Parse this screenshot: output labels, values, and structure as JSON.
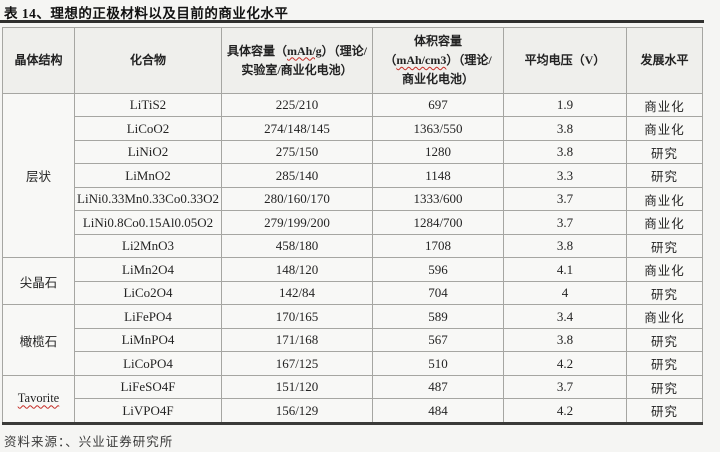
{
  "title": "表 14、理想的正极材料以及目前的商业化水平",
  "footer": "资料来源：、兴业证券研究所",
  "spellcheck_terms": [
    "mAh/cm3",
    "mAh/g",
    "Tavorite"
  ],
  "colors": {
    "page_bg": "#f5f5f3",
    "header_bg": "#efefec",
    "row_bg": "#f8f8f6",
    "border": "#a6a6a2",
    "title_rule": "#30302e",
    "spellcheck_red": "#c42b24"
  },
  "table": {
    "headers": [
      {
        "id": "structure",
        "lines": [
          "晶体结构"
        ]
      },
      {
        "id": "compound",
        "lines": [
          "化合物"
        ]
      },
      {
        "id": "specific_capacity",
        "lines": [
          "具体容量（mAh/g）（理论/",
          "实验室/商业化电池）"
        ]
      },
      {
        "id": "volumetric_capacity",
        "lines": [
          "体积容量",
          "（mAh/cm3）（理论/",
          "商业化电池）"
        ]
      },
      {
        "id": "avg_voltage",
        "lines": [
          "平均电压（V）"
        ]
      },
      {
        "id": "development",
        "lines": [
          "发展水平"
        ]
      }
    ],
    "groups": [
      {
        "structure": "层状",
        "rows": [
          {
            "compound": "LiTiS2",
            "specific_capacity": "225/210",
            "volumetric_capacity": "697",
            "avg_voltage": "1.9",
            "development": "商业化"
          },
          {
            "compound": "LiCoO2",
            "specific_capacity": "274/148/145",
            "volumetric_capacity": "1363/550",
            "avg_voltage": "3.8",
            "development": "商业化"
          },
          {
            "compound": "LiNiO2",
            "specific_capacity": "275/150",
            "volumetric_capacity": "1280",
            "avg_voltage": "3.8",
            "development": "研究"
          },
          {
            "compound": "LiMnO2",
            "specific_capacity": "285/140",
            "volumetric_capacity": "1148",
            "avg_voltage": "3.3",
            "development": "研究"
          },
          {
            "compound": "LiNi0.33Mn0.33Co0.33O2",
            "specific_capacity": "280/160/170",
            "volumetric_capacity": "1333/600",
            "avg_voltage": "3.7",
            "development": "商业化"
          },
          {
            "compound": "LiNi0.8Co0.15Al0.05O2",
            "specific_capacity": "279/199/200",
            "volumetric_capacity": "1284/700",
            "avg_voltage": "3.7",
            "development": "商业化"
          },
          {
            "compound": "Li2MnO3",
            "specific_capacity": "458/180",
            "volumetric_capacity": "1708",
            "avg_voltage": "3.8",
            "development": "研究"
          }
        ]
      },
      {
        "structure": "尖晶石",
        "rows": [
          {
            "compound": "LiMn2O4",
            "specific_capacity": "148/120",
            "volumetric_capacity": "596",
            "avg_voltage": "4.1",
            "development": "商业化"
          },
          {
            "compound": "LiCo2O4",
            "specific_capacity": "142/84",
            "volumetric_capacity": "704",
            "avg_voltage": "4",
            "development": "研究"
          }
        ]
      },
      {
        "structure": "橄榄石",
        "rows": [
          {
            "compound": "LiFePO4",
            "specific_capacity": "170/165",
            "volumetric_capacity": "589",
            "avg_voltage": "3.4",
            "development": "商业化"
          },
          {
            "compound": "LiMnPO4",
            "specific_capacity": "171/168",
            "volumetric_capacity": "567",
            "avg_voltage": "3.8",
            "development": "研究"
          },
          {
            "compound": "LiCoPO4",
            "specific_capacity": "167/125",
            "volumetric_capacity": "510",
            "avg_voltage": "4.2",
            "development": "研究"
          }
        ]
      },
      {
        "structure": "Tavorite",
        "rows": [
          {
            "compound": "LiFeSO4F",
            "specific_capacity": "151/120",
            "volumetric_capacity": "487",
            "avg_voltage": "3.7",
            "development": "研究"
          },
          {
            "compound": "LiVPO4F",
            "specific_capacity": "156/129",
            "volumetric_capacity": "484",
            "avg_voltage": "4.2",
            "development": "研究"
          }
        ]
      }
    ]
  },
  "chart_data": {
    "type": "table",
    "title": "表 14、理想的正极材料以及目前的商业化水平",
    "columns": [
      "晶体结构",
      "化合物",
      "具体容量（mAh/g）（理论/实验室/商业化电池）",
      "体积容量（mAh/cm3）（理论/商业化电池）",
      "平均电压（V）",
      "发展水平"
    ],
    "rows": [
      [
        "层状",
        "LiTiS2",
        "225/210",
        "697",
        "1.9",
        "商业化"
      ],
      [
        "层状",
        "LiCoO2",
        "274/148/145",
        "1363/550",
        "3.8",
        "商业化"
      ],
      [
        "层状",
        "LiNiO2",
        "275/150",
        "1280",
        "3.8",
        "研究"
      ],
      [
        "层状",
        "LiMnO2",
        "285/140",
        "1148",
        "3.3",
        "研究"
      ],
      [
        "层状",
        "LiNi0.33Mn0.33Co0.33O2",
        "280/160/170",
        "1333/600",
        "3.7",
        "商业化"
      ],
      [
        "层状",
        "LiNi0.8Co0.15Al0.05O2",
        "279/199/200",
        "1284/700",
        "3.7",
        "商业化"
      ],
      [
        "层状",
        "Li2MnO3",
        "458/180",
        "1708",
        "3.8",
        "研究"
      ],
      [
        "尖晶石",
        "LiMn2O4",
        "148/120",
        "596",
        "4.1",
        "商业化"
      ],
      [
        "尖晶石",
        "LiCo2O4",
        "142/84",
        "704",
        "4",
        "研究"
      ],
      [
        "橄榄石",
        "LiFePO4",
        "170/165",
        "589",
        "3.4",
        "商业化"
      ],
      [
        "橄榄石",
        "LiMnPO4",
        "171/168",
        "567",
        "3.8",
        "研究"
      ],
      [
        "橄榄石",
        "LiCoPO4",
        "167/125",
        "510",
        "4.2",
        "研究"
      ],
      [
        "Tavorite",
        "LiFeSO4F",
        "151/120",
        "487",
        "3.7",
        "研究"
      ],
      [
        "Tavorite",
        "LiVPO4F",
        "156/129",
        "484",
        "4.2",
        "研究"
      ]
    ]
  }
}
